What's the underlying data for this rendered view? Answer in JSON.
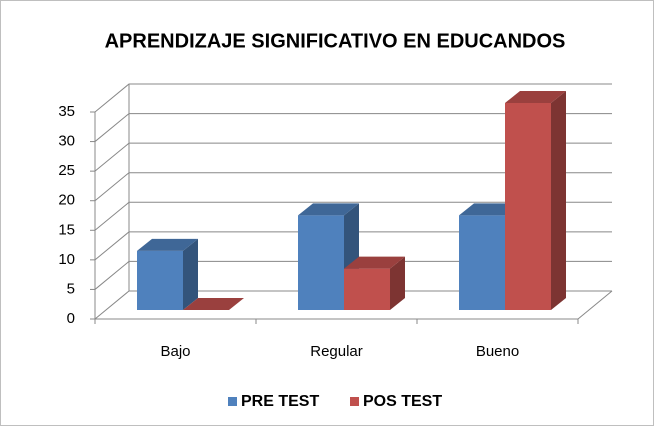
{
  "chart_data": {
    "type": "bar3d",
    "title": "APRENDIZAJE SIGNIFICATIVO EN EDUCANDOS",
    "categories": [
      "Bajo",
      "Regular",
      "Bueno"
    ],
    "series": [
      {
        "name": "PRE TEST",
        "color": "#4f81bd",
        "values": [
          10,
          16,
          16
        ]
      },
      {
        "name": "POS TEST",
        "color": "#c0504d",
        "values": [
          0,
          7,
          35
        ]
      }
    ],
    "ylim": [
      0,
      35
    ],
    "yticks": [
      0,
      5,
      10,
      15,
      20,
      25,
      30,
      35
    ],
    "grid": true,
    "legend": "bottom"
  }
}
